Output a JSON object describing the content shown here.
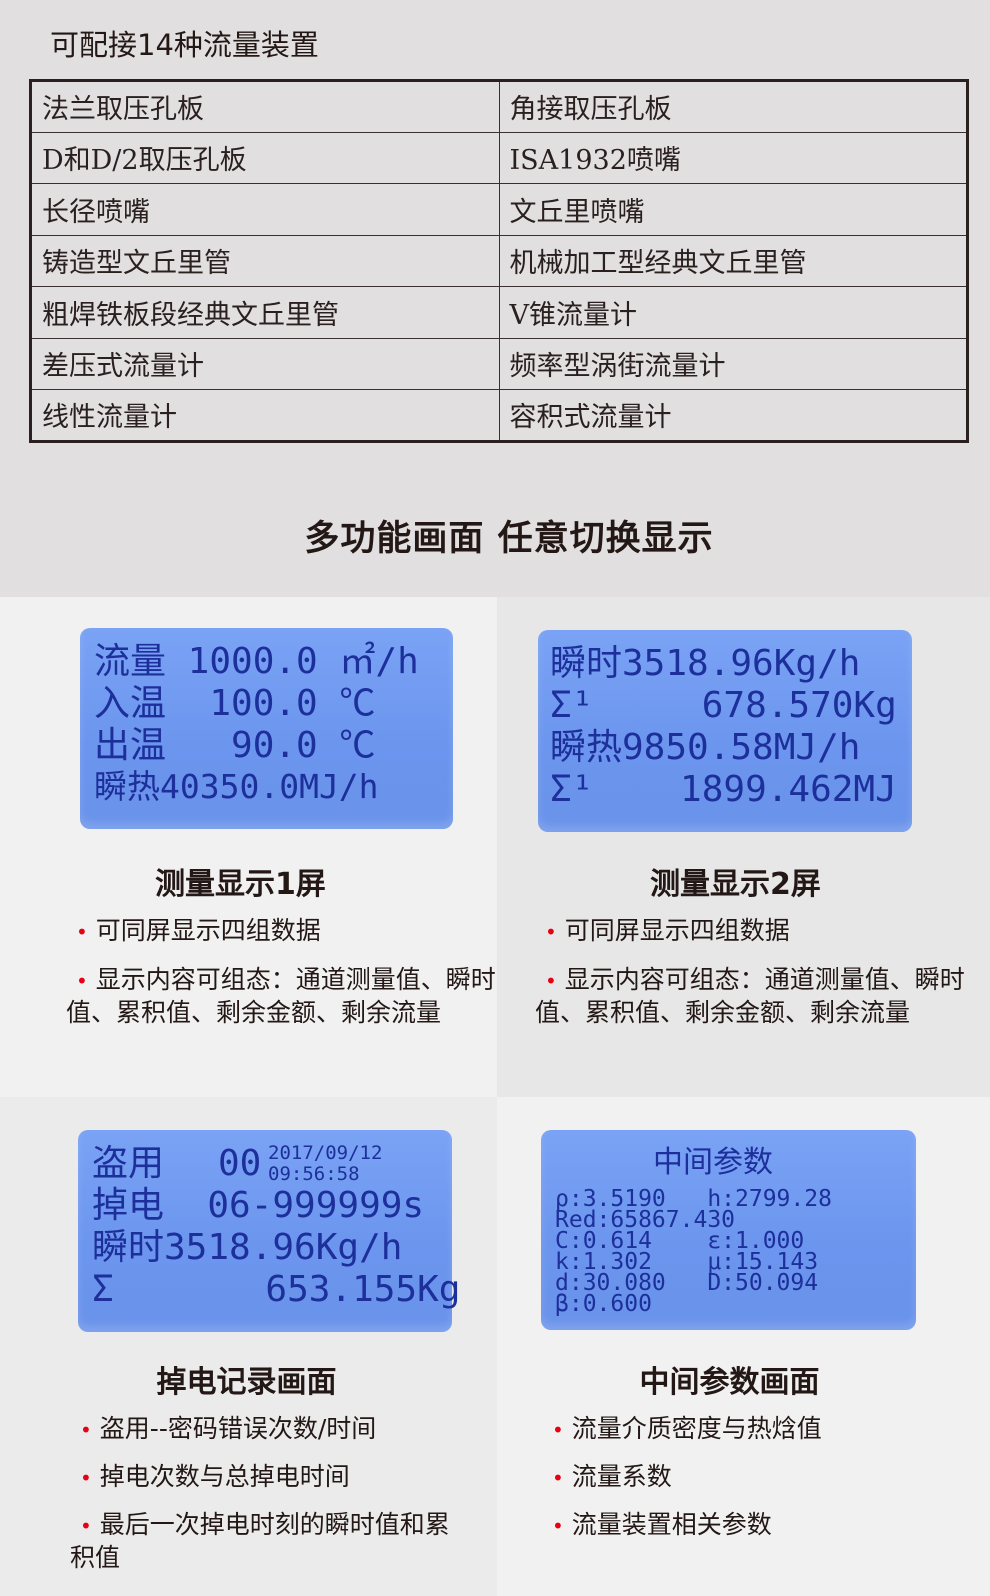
{
  "title": "可配接14种流量装置",
  "devices": [
    [
      "法兰取压孔板",
      "角接取压孔板"
    ],
    [
      "D和D/2取压孔板",
      "ISA1932喷嘴"
    ],
    [
      "长径喷嘴",
      "文丘里喷嘴"
    ],
    [
      "铸造型文丘里管",
      "机械加工型经典文丘里管"
    ],
    [
      "粗焊铁板段经典文丘里管",
      "V锥流量计"
    ],
    [
      "差压式流量计",
      "频率型涡街流量计"
    ],
    [
      "线性流量计",
      "容积式流量计"
    ]
  ],
  "heading": "多功能画面  任意切换显示",
  "colors": {
    "lcd_bg": "#6f99f0",
    "lcd_text": "#1d2f9a",
    "bullet": "#e60012"
  },
  "panels": [
    {
      "lcd": [
        "流量 1000.0 ㎡/h",
        "入温  100.0 ℃",
        "出温   90.0 ℃",
        "瞬热40350.0MJ/h"
      ],
      "caption": "测量显示1屏",
      "bullets": [
        "可同屏显示四组数据",
        "显示内容可组态：通道测量值、瞬时值、累积值、剩余金额、剩余流量"
      ]
    },
    {
      "lcd": [
        "瞬时3518.96Kg/h",
        "Σ¹     678.570Kg",
        "瞬热9850.58MJ/h",
        "Σ¹    1899.462MJ"
      ],
      "caption": "测量显示2屏",
      "bullets": [
        "可同屏显示四组数据",
        "显示内容可组态：通道测量值、瞬时值、累积值、剩余金额、剩余流量"
      ]
    },
    {
      "lcd": [
        "盗用",
        "00",
        "2017/09/12",
        "09:56:58",
        "掉电  06-999999s",
        "瞬时3518.96Kg/h",
        "Σ       653.155Kg"
      ],
      "caption": "掉电记录画面",
      "bullets": [
        "盗用--密码错误次数/时间",
        "掉电次数与总掉电时间",
        "最后一次掉电时刻的瞬时值和累积值"
      ]
    },
    {
      "lcd": [
        "中间参数",
        "ρ:3.5190   h:2799.28",
        "Red:65867.430",
        "C:0.614    ε:1.000",
        "k:1.302    μ:15.143",
        "d:30.080   D:50.094",
        "β:0.600"
      ],
      "caption": "中间参数画面",
      "bullets": [
        "流量介质密度与热焓值",
        "流量系数",
        "流量装置相关参数"
      ]
    }
  ]
}
